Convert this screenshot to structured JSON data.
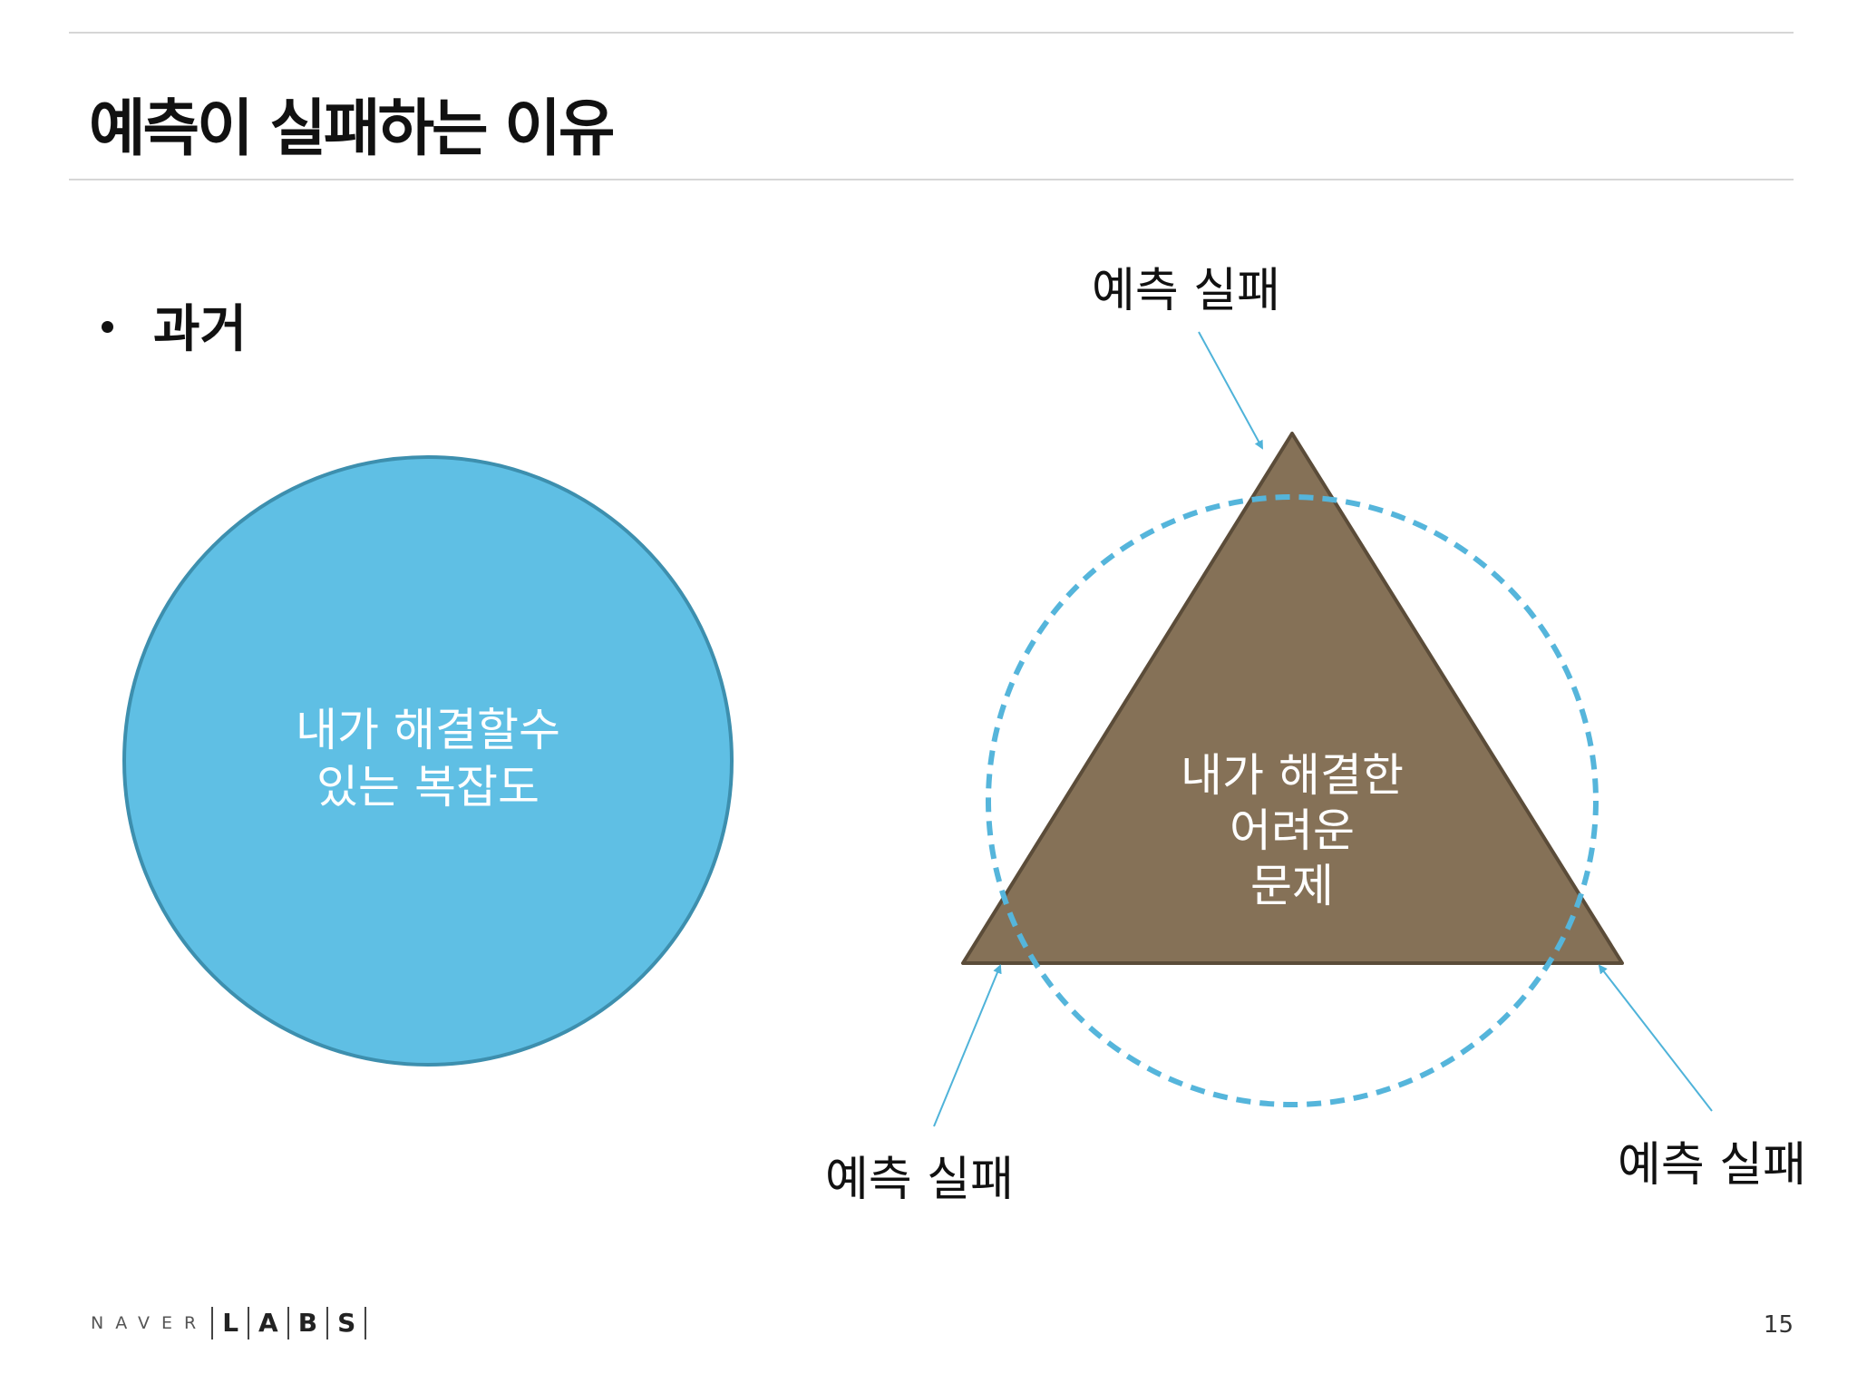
{
  "slide": {
    "title": "예측이 실패하는 이유",
    "bullet": "과거",
    "page_number": "15"
  },
  "circle_diagram": {
    "label_line1": "내가 해결할수",
    "label_line2": "있는 복잡도",
    "fill_color": "#5fbfe4",
    "stroke_color": "#3d8fae"
  },
  "triangle_diagram": {
    "label_line1": "내가 해결한",
    "label_line2": "어려운",
    "label_line3": "문제",
    "fill_color": "#857157",
    "stroke_color": "#5b4c39",
    "dashed_circle_color": "#55b5db",
    "callouts": [
      {
        "label": "예측 실패"
      },
      {
        "label": "예측 실패"
      },
      {
        "label": "예측 실패"
      }
    ],
    "arrow_color": "#4fb3d9"
  },
  "logo": {
    "brand": "NAVER",
    "cells": [
      "L",
      "A",
      "B",
      "S"
    ]
  }
}
